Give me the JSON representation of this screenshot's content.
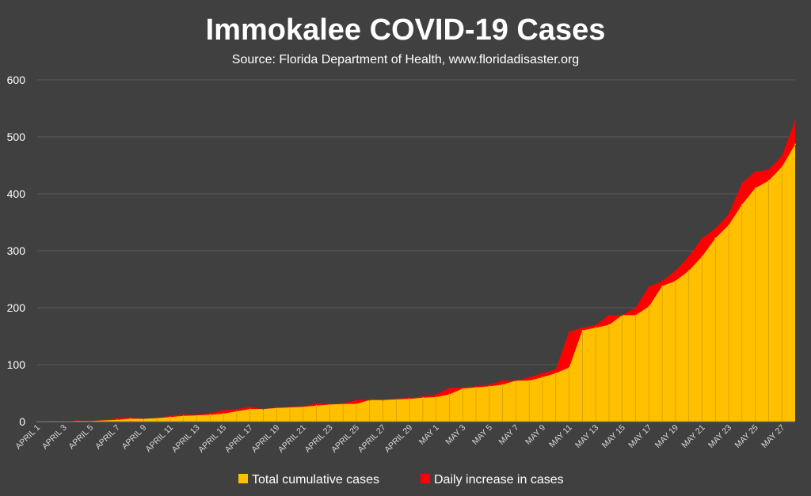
{
  "chart_data": {
    "type": "area",
    "title": "Immokalee COVID-19 Cases",
    "subtitle": "Source: Florida Department of Health, www.floridadisaster.org",
    "xlabel": "",
    "ylabel": "",
    "ylim": [
      0,
      600
    ],
    "yticks": [
      0,
      100,
      200,
      300,
      400,
      500,
      600
    ],
    "grid": true,
    "legend": "bottom",
    "x": [
      "April 1",
      "April 2",
      "April 3",
      "April 4",
      "April 5",
      "April 6",
      "April 7",
      "April 8",
      "April 9",
      "April 10",
      "April 11",
      "April 12",
      "April 13",
      "April 14",
      "April 15",
      "April 16",
      "April 17",
      "April 18",
      "April 19",
      "April 20",
      "April 21",
      "April 22",
      "April 23",
      "April 24",
      "April 25",
      "April 26",
      "April 27",
      "April 28",
      "April 29",
      "April 30",
      "May 1",
      "May 2",
      "May 3",
      "May 4",
      "May 5",
      "May 6",
      "May 7",
      "May 8",
      "May 9",
      "May 10",
      "May 11",
      "May 12",
      "May 13",
      "May 14",
      "May 15",
      "May 16",
      "May 17",
      "May 18",
      "May 19",
      "May 20",
      "May 21",
      "May 22",
      "May 23",
      "May 24",
      "May 25",
      "May 26",
      "May 27",
      "May 28"
    ],
    "x_tick_labels": [
      "APRIL 1",
      "APRIL 3",
      "APRIL 5",
      "APRIL 7",
      "APRIL 9",
      "APRIL 11",
      "APRIL 13",
      "APRIL 15",
      "APRIL 17",
      "APRIL 19",
      "APRIL 21",
      "APRIL 23",
      "APRIL 25",
      "APRIL 27",
      "APRIL 29",
      "MAY 1",
      "MAY 3",
      "MAY 5",
      "MAY 7",
      "MAY 9",
      "MAY 11",
      "MAY 13",
      "MAY 15",
      "MAY 17",
      "MAY 19",
      "MAY 21",
      "MAY 23",
      "MAY 25",
      "MAY 27"
    ],
    "series": [
      {
        "name": "Total cumulative cases",
        "color": "#ffc000",
        "values": [
          0,
          0,
          0,
          1,
          1,
          2,
          3,
          5,
          5,
          6,
          8,
          10,
          11,
          12,
          14,
          18,
          22,
          22,
          24,
          25,
          26,
          28,
          30,
          31,
          31,
          38,
          38,
          39,
          40,
          42,
          43,
          48,
          58,
          60,
          62,
          65,
          72,
          72,
          78,
          85,
          95,
          160,
          165,
          170,
          187,
          187,
          202,
          238,
          247,
          265,
          290,
          322,
          345,
          381,
          410,
          423,
          447,
          487
        ],
        "increase_labels": []
      },
      {
        "name": "Daily increase in cases",
        "color": "#ff0000",
        "values": [
          0,
          0,
          0,
          1,
          0,
          1,
          3,
          2,
          0,
          1,
          2,
          3,
          1,
          3,
          6,
          4,
          4,
          0,
          1,
          1,
          1,
          4,
          1,
          1,
          7,
          0,
          0,
          1,
          2,
          2,
          5,
          11,
          2,
          2,
          3,
          7,
          0,
          6,
          7,
          7,
          63,
          5,
          5,
          17,
          0,
          13,
          35,
          9,
          18,
          25,
          32,
          17,
          19,
          38,
          29,
          19,
          20,
          41
        ]
      }
    ]
  }
}
